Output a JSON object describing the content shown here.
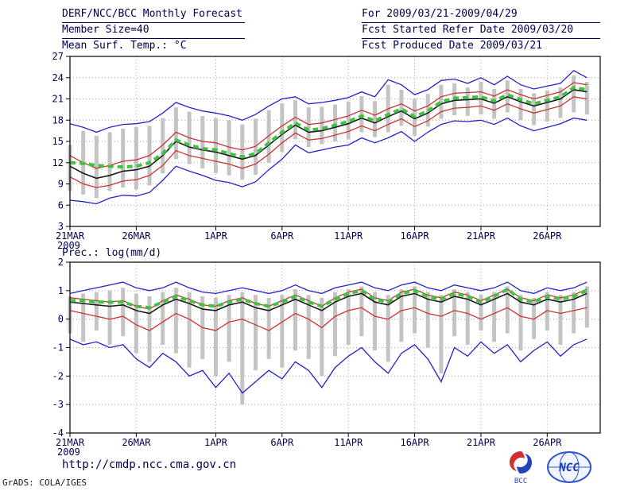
{
  "header": {
    "title": "DERF/NCC/BCC Monthly Forecast",
    "member_size": "Member Size=40",
    "temp_label": "Mean Surf. Temp.: °C",
    "for_range": "For 2009/03/21-2009/04/29",
    "fcst_refer": "Fcst Started Refer Date 2009/03/20",
    "fcst_produced": "Fcst Produced Date 2009/03/21"
  },
  "prec_label": "Prec.: log(mm/d)",
  "footer": {
    "url": "http://cmdp.ncc.cma.gov.cn",
    "credit": "GrADS: COLA/IGES",
    "logos": [
      "BCC",
      "NCC"
    ]
  },
  "colors": {
    "envelope": "#2222cc",
    "quartile": "#cc3333",
    "mean": "#1a1a1a",
    "climatology": "#44c144",
    "spread_bar": "#c4c4c4",
    "grid": "#a8a8a8",
    "text": "#00004d"
  },
  "chart_data": [
    {
      "type": "line",
      "panel": "temperature",
      "title": "Mean Surf. Temp.: °C",
      "ylim": [
        3,
        27
      ],
      "yticks": [
        3,
        6,
        9,
        12,
        15,
        18,
        21,
        24,
        27
      ],
      "x_domain": [
        0,
        40
      ],
      "xticks": [
        {
          "pos": 0,
          "label": "21MAR",
          "sub": "2009"
        },
        {
          "pos": 5,
          "label": "26MAR"
        },
        {
          "pos": 11,
          "label": "1APR"
        },
        {
          "pos": 16,
          "label": "6APR"
        },
        {
          "pos": 21,
          "label": "11APR"
        },
        {
          "pos": 26,
          "label": "16APR"
        },
        {
          "pos": 31,
          "label": "21APR"
        },
        {
          "pos": 36,
          "label": "26APR"
        }
      ],
      "bars": {
        "name": "member-spread-bar",
        "color": "#c4c4c4",
        "low": [
          8.0,
          7.5,
          7.0,
          8.0,
          8.5,
          8.2,
          8.8,
          10.5,
          12.5,
          11.8,
          11.2,
          10.5,
          10.2,
          9.6,
          10.3,
          12.0,
          13.5,
          15.3,
          14.2,
          14.6,
          15.0,
          15.3,
          16.3,
          15.6,
          16.3,
          17.2,
          15.8,
          17.1,
          18.2,
          18.7,
          18.6,
          18.8,
          18.2,
          19.1,
          18.0,
          17.3,
          17.8,
          18.3,
          19.1,
          18.8
        ],
        "high": [
          14.5,
          16.5,
          15.8,
          16.3,
          16.8,
          17.0,
          17.2,
          18.3,
          19.8,
          19.2,
          18.6,
          18.3,
          18.0,
          17.4,
          18.2,
          19.4,
          20.4,
          20.8,
          19.8,
          19.9,
          20.2,
          20.6,
          21.4,
          20.7,
          23.0,
          22.3,
          21.0,
          21.7,
          23.0,
          23.2,
          22.6,
          23.4,
          22.4,
          23.6,
          22.4,
          21.8,
          22.2,
          22.6,
          24.3,
          23.4
        ]
      },
      "series": [
        {
          "name": "ensemble-max",
          "color": "#2222cc",
          "width": 1.3,
          "dash": null,
          "values": [
            17.5,
            17.0,
            16.3,
            17.0,
            17.4,
            17.5,
            17.8,
            19.0,
            20.5,
            19.8,
            19.3,
            19.0,
            18.6,
            18.0,
            18.8,
            20.0,
            21.0,
            21.3,
            20.3,
            20.5,
            20.8,
            21.2,
            22.0,
            21.3,
            23.7,
            23.0,
            21.6,
            22.3,
            23.6,
            23.8,
            23.2,
            24.0,
            23.0,
            24.2,
            23.0,
            22.4,
            22.8,
            23.2,
            25.0,
            24.0
          ]
        },
        {
          "name": "ensemble-min",
          "color": "#2222cc",
          "width": 1.3,
          "dash": null,
          "values": [
            6.7,
            6.5,
            6.2,
            7.0,
            7.4,
            7.3,
            7.8,
            9.5,
            11.5,
            10.8,
            10.2,
            9.5,
            9.2,
            8.6,
            9.3,
            11.0,
            12.5,
            14.5,
            13.4,
            13.8,
            14.2,
            14.5,
            15.5,
            14.8,
            15.5,
            16.4,
            15.0,
            16.3,
            17.4,
            17.9,
            17.8,
            18.0,
            17.4,
            18.3,
            17.2,
            16.5,
            17.0,
            17.5,
            18.3,
            18.0
          ]
        },
        {
          "name": "upper-quartile",
          "color": "#cc3333",
          "width": 1.3,
          "dash": null,
          "values": [
            13.0,
            12.0,
            11.2,
            11.6,
            12.2,
            12.4,
            13.0,
            14.5,
            16.3,
            15.5,
            15.0,
            14.8,
            14.2,
            13.8,
            14.3,
            15.8,
            17.2,
            18.4,
            17.4,
            17.6,
            18.1,
            18.6,
            19.4,
            18.7,
            19.6,
            20.3,
            19.3,
            20.0,
            21.3,
            21.8,
            21.9,
            22.0,
            21.4,
            22.3,
            21.6,
            21.0,
            21.5,
            22.0,
            23.3,
            23.0
          ]
        },
        {
          "name": "lower-quartile",
          "color": "#cc3333",
          "width": 1.3,
          "dash": null,
          "values": [
            10.0,
            9.0,
            8.5,
            8.8,
            9.4,
            9.6,
            10.2,
            11.6,
            13.7,
            13.0,
            12.6,
            12.2,
            11.8,
            11.2,
            11.8,
            13.2,
            14.8,
            16.2,
            15.2,
            15.4,
            15.9,
            16.4,
            17.2,
            16.5,
            17.4,
            18.2,
            17.1,
            17.9,
            19.2,
            19.7,
            19.8,
            20.0,
            19.4,
            20.3,
            19.6,
            19.0,
            19.5,
            20.0,
            21.3,
            21.0
          ]
        },
        {
          "name": "ensemble-mean",
          "color": "#1a1a1a",
          "width": 1.6,
          "dash": null,
          "values": [
            11.5,
            10.5,
            9.8,
            10.2,
            10.8,
            11.0,
            11.5,
            13.0,
            15.0,
            14.2,
            13.8,
            13.5,
            13.0,
            12.5,
            13.0,
            14.5,
            16.0,
            17.3,
            16.3,
            16.5,
            17.0,
            17.5,
            18.3,
            17.6,
            18.5,
            19.3,
            18.2,
            19.0,
            20.3,
            20.8,
            20.9,
            21.0,
            20.4,
            21.3,
            20.6,
            20.0,
            20.5,
            21.0,
            22.3,
            22.0
          ]
        },
        {
          "name": "climatology",
          "color": "#44c144",
          "width": 4,
          "dash": "7,5",
          "values": [
            12.0,
            11.9,
            11.6,
            11.5,
            11.4,
            11.5,
            12.0,
            13.3,
            15.2,
            14.5,
            14.0,
            13.8,
            13.3,
            12.8,
            13.3,
            14.8,
            16.3,
            17.6,
            16.6,
            16.8,
            17.3,
            17.8,
            18.6,
            17.9,
            18.8,
            19.6,
            18.5,
            19.3,
            20.6,
            21.1,
            21.2,
            21.3,
            20.7,
            21.6,
            20.9,
            20.3,
            20.8,
            21.3,
            22.6,
            22.3
          ]
        }
      ]
    },
    {
      "type": "line",
      "panel": "precipitation",
      "title": "Prec.: log(mm/d)",
      "ylim": [
        -4,
        2
      ],
      "yticks": [
        -4,
        -3,
        -2,
        -1,
        0,
        1,
        2
      ],
      "x_domain": [
        0,
        40
      ],
      "xticks": [
        {
          "pos": 0,
          "label": "21MAR",
          "sub": "2009"
        },
        {
          "pos": 5,
          "label": "26MAR"
        },
        {
          "pos": 11,
          "label": "1APR"
        },
        {
          "pos": 16,
          "label": "6APR"
        },
        {
          "pos": 21,
          "label": "11APR"
        },
        {
          "pos": 26,
          "label": "16APR"
        },
        {
          "pos": 31,
          "label": "21APR"
        },
        {
          "pos": 36,
          "label": "26APR"
        }
      ],
      "bars": {
        "name": "member-spread-bar",
        "color": "#c4c4c4",
        "low": [
          -0.5,
          -0.8,
          -0.4,
          -0.9,
          -0.6,
          -1.2,
          -1.5,
          -0.9,
          -1.2,
          -1.7,
          -1.4,
          -2.0,
          -1.5,
          -3.0,
          -1.8,
          -1.4,
          -1.7,
          -1.1,
          -1.4,
          -2.0,
          -1.3,
          -0.9,
          -0.6,
          -1.1,
          -1.5,
          -0.8,
          -0.5,
          -1.0,
          -1.9,
          -0.6,
          -0.9,
          -0.4,
          -0.8,
          -0.5,
          -1.1,
          -0.7,
          -0.4,
          -0.9,
          -0.5,
          -0.3
        ],
        "high": [
          0.8,
          0.9,
          0.95,
          1.0,
          1.1,
          0.9,
          0.8,
          0.95,
          1.1,
          0.95,
          0.8,
          0.75,
          0.85,
          0.95,
          0.85,
          0.75,
          0.85,
          1.05,
          0.85,
          0.75,
          0.95,
          1.05,
          1.15,
          0.95,
          0.85,
          1.05,
          1.15,
          0.95,
          0.85,
          1.05,
          0.95,
          0.85,
          0.95,
          1.15,
          0.85,
          0.75,
          0.95,
          0.85,
          0.95,
          1.15
        ]
      },
      "series": [
        {
          "name": "ensemble-max",
          "color": "#2222cc",
          "width": 1.3,
          "dash": null,
          "values": [
            0.9,
            1.0,
            1.1,
            1.2,
            1.3,
            1.1,
            1.0,
            1.1,
            1.3,
            1.1,
            0.95,
            0.9,
            1.0,
            1.1,
            1.0,
            0.9,
            1.0,
            1.2,
            1.0,
            0.9,
            1.1,
            1.2,
            1.3,
            1.1,
            1.0,
            1.2,
            1.3,
            1.1,
            1.0,
            1.2,
            1.1,
            1.0,
            1.1,
            1.3,
            1.0,
            0.9,
            1.1,
            1.0,
            1.1,
            1.3
          ]
        },
        {
          "name": "ensemble-min",
          "color": "#2222cc",
          "width": 1.3,
          "dash": null,
          "values": [
            -0.7,
            -0.9,
            -0.8,
            -1.0,
            -0.9,
            -1.4,
            -1.7,
            -1.2,
            -1.5,
            -2.0,
            -1.8,
            -2.4,
            -1.9,
            -2.6,
            -2.2,
            -1.8,
            -2.1,
            -1.5,
            -1.8,
            -2.4,
            -1.7,
            -1.3,
            -1.0,
            -1.5,
            -1.9,
            -1.2,
            -0.9,
            -1.4,
            -2.2,
            -1.0,
            -1.3,
            -0.8,
            -1.2,
            -0.9,
            -1.5,
            -1.1,
            -0.8,
            -1.3,
            -0.9,
            -0.7
          ]
        },
        {
          "name": "upper-quartile",
          "color": "#cc3333",
          "width": 1.3,
          "dash": null,
          "values": [
            0.75,
            0.7,
            0.65,
            0.6,
            0.65,
            0.45,
            0.35,
            0.65,
            0.85,
            0.7,
            0.5,
            0.45,
            0.65,
            0.75,
            0.55,
            0.45,
            0.65,
            0.85,
            0.65,
            0.45,
            0.75,
            0.95,
            1.05,
            0.75,
            0.65,
            0.95,
            1.05,
            0.85,
            0.75,
            0.95,
            0.85,
            0.65,
            0.85,
            1.05,
            0.75,
            0.65,
            0.85,
            0.75,
            0.85,
            1.05
          ]
        },
        {
          "name": "lower-quartile",
          "color": "#cc3333",
          "width": 1.3,
          "dash": null,
          "values": [
            0.3,
            0.2,
            0.1,
            0.0,
            0.1,
            -0.2,
            -0.4,
            -0.1,
            0.2,
            0.0,
            -0.3,
            -0.4,
            -0.1,
            0.0,
            -0.2,
            -0.4,
            -0.1,
            0.2,
            0.0,
            -0.3,
            0.1,
            0.3,
            0.4,
            0.1,
            0.0,
            0.3,
            0.4,
            0.2,
            0.1,
            0.3,
            0.2,
            0.0,
            0.2,
            0.4,
            0.1,
            0.0,
            0.3,
            0.2,
            0.3,
            0.4
          ]
        },
        {
          "name": "ensemble-mean",
          "color": "#1a1a1a",
          "width": 1.6,
          "dash": null,
          "values": [
            0.6,
            0.55,
            0.5,
            0.45,
            0.5,
            0.3,
            0.2,
            0.5,
            0.7,
            0.55,
            0.35,
            0.3,
            0.5,
            0.6,
            0.4,
            0.3,
            0.5,
            0.7,
            0.5,
            0.3,
            0.6,
            0.8,
            0.9,
            0.6,
            0.5,
            0.8,
            0.9,
            0.7,
            0.6,
            0.8,
            0.7,
            0.5,
            0.7,
            0.9,
            0.6,
            0.5,
            0.7,
            0.6,
            0.7,
            0.9
          ]
        },
        {
          "name": "climatology",
          "color": "#44c144",
          "width": 4,
          "dash": "7,5",
          "values": [
            0.65,
            0.65,
            0.6,
            0.6,
            0.6,
            0.45,
            0.4,
            0.6,
            0.8,
            0.65,
            0.5,
            0.45,
            0.6,
            0.7,
            0.55,
            0.45,
            0.6,
            0.8,
            0.6,
            0.45,
            0.7,
            0.9,
            1.0,
            0.7,
            0.6,
            0.9,
            1.0,
            0.8,
            0.7,
            0.9,
            0.8,
            0.6,
            0.8,
            1.05,
            0.7,
            0.6,
            0.8,
            0.7,
            0.8,
            1.0
          ]
        }
      ]
    }
  ]
}
